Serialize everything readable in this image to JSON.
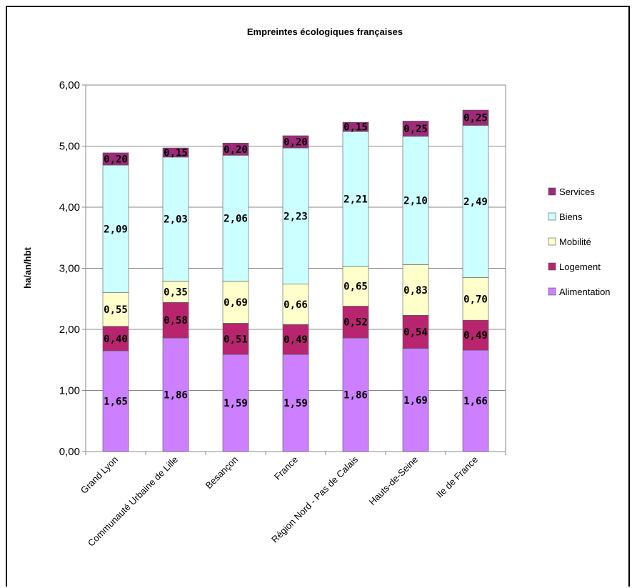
{
  "chart_data": {
    "type": "bar",
    "stacked": true,
    "title": "Empreintes écologiques françaises",
    "ylabel": "ha/an/hbt",
    "xlabel": "",
    "ylim": [
      0,
      6
    ],
    "yticks": [
      "0,00",
      "1,00",
      "2,00",
      "3,00",
      "4,00",
      "5,00",
      "6,00"
    ],
    "ytick_values": [
      0,
      1,
      2,
      3,
      4,
      5,
      6
    ],
    "grid": true,
    "legend_position": "right",
    "categories": [
      "Grand Lyon",
      "Communauté Urbaine de Lille",
      "Besançon",
      "France",
      "Région Nord - Pas de Calais",
      "Hauts-de-Seine",
      "Ile de France"
    ],
    "series": [
      {
        "name": "Alimentation",
        "color": "#cc80ff",
        "values": [
          1.65,
          1.86,
          1.59,
          1.59,
          1.86,
          1.69,
          1.66
        ],
        "labels": [
          "1,65",
          "1,86",
          "1,59",
          "1,59",
          "1,86",
          "1,69",
          "1,66"
        ]
      },
      {
        "name": "Logement",
        "color": "#b8256e",
        "values": [
          0.4,
          0.58,
          0.51,
          0.49,
          0.52,
          0.54,
          0.49
        ],
        "labels": [
          "0,40",
          "0,58",
          "0,51",
          "0,49",
          "0,52",
          "0,54",
          "0,49"
        ]
      },
      {
        "name": "Mobilité",
        "color": "#ffffcc",
        "values": [
          0.55,
          0.35,
          0.69,
          0.66,
          0.65,
          0.83,
          0.7
        ],
        "labels": [
          "0,55",
          "0,35",
          "0,69",
          "0,66",
          "0,65",
          "0,83",
          "0,70"
        ]
      },
      {
        "name": "Biens",
        "color": "#ccffff",
        "values": [
          2.09,
          2.03,
          2.06,
          2.23,
          2.21,
          2.1,
          2.49
        ],
        "labels": [
          "2,09",
          "2,03",
          "2,06",
          "2,23",
          "2,21",
          "2,10",
          "2,49"
        ]
      },
      {
        "name": "Services",
        "color": "#9e2a7a",
        "values": [
          0.2,
          0.15,
          0.2,
          0.2,
          0.15,
          0.25,
          0.25
        ],
        "labels": [
          "0,20",
          "0,15",
          "0,20",
          "0,20",
          "0,15",
          "0,25",
          "0,25"
        ]
      }
    ],
    "legend_order": [
      "Services",
      "Biens",
      "Mobilité",
      "Logement",
      "Alimentation"
    ]
  }
}
